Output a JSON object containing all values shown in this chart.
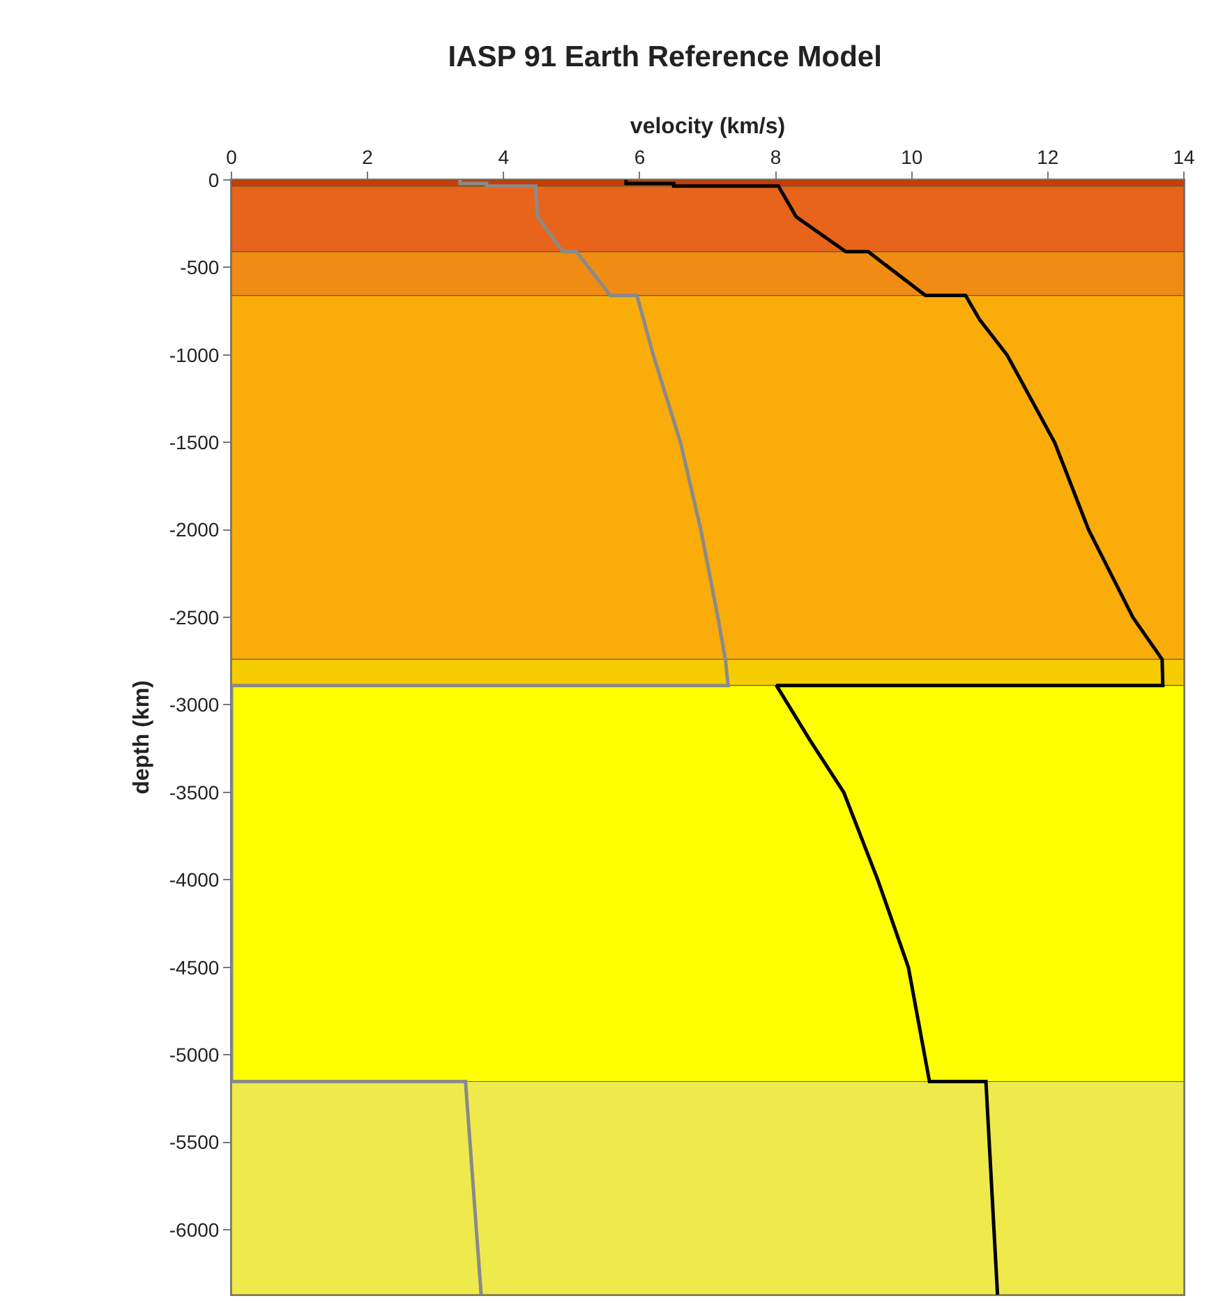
{
  "chart_data": {
    "type": "line",
    "title": "IASP 91 Earth Reference Model",
    "xlabel": "velocity (km/s)",
    "ylabel": "depth (km)",
    "xlim": [
      0,
      14
    ],
    "xticks": [
      0,
      2,
      4,
      6,
      8,
      10,
      12,
      14
    ],
    "ylim": [
      -6371,
      0
    ],
    "yticks": [
      0,
      -500,
      -1000,
      -1500,
      -2000,
      -2500,
      -3000,
      -3500,
      -4000,
      -4500,
      -5000,
      -5500,
      -6000
    ],
    "grid": false,
    "bands": [
      {
        "axis": "y",
        "from": 0,
        "to": -35,
        "color": "#c83c0a"
      },
      {
        "axis": "y",
        "from": -35,
        "to": -410,
        "color": "#e8641a"
      },
      {
        "axis": "y",
        "from": -410,
        "to": -660,
        "color": "#f08c14"
      },
      {
        "axis": "y",
        "from": -660,
        "to": -2740,
        "color": "#f9ac0a"
      },
      {
        "axis": "y",
        "from": -2740,
        "to": -2889,
        "color": "#f5cc00"
      },
      {
        "axis": "y",
        "from": -2889,
        "to": -5153,
        "color": "#ffff00"
      },
      {
        "axis": "y",
        "from": -5153,
        "to": -6371,
        "color": "#eeea4c"
      }
    ],
    "series": [
      {
        "color": "#000000",
        "x": [
          5.8,
          5.8,
          6.5,
          6.5,
          8.04,
          8.3,
          9.03,
          9.36,
          10.2,
          10.79,
          11.0,
          11.4,
          12.1,
          12.6,
          13.25,
          13.68,
          13.69,
          8.01,
          8.5,
          9.0,
          9.5,
          9.95,
          10.26,
          11.09,
          11.26
        ],
        "values": [
          0,
          -20,
          -20,
          -35,
          -35,
          -210,
          -410,
          -410,
          -660,
          -660,
          -800,
          -1000,
          -1500,
          -2000,
          -2500,
          -2740,
          -2889,
          -2889,
          -3200,
          -3500,
          -4000,
          -4500,
          -5153,
          -5153,
          -6371
        ]
      },
      {
        "color": "#8a8a8a",
        "x": [
          3.36,
          3.36,
          3.75,
          3.75,
          4.47,
          4.5,
          4.87,
          5.07,
          5.57,
          5.96,
          6.2,
          6.6,
          6.9,
          7.15,
          7.26,
          7.3,
          0,
          0,
          3.44,
          3.67
        ],
        "values": [
          0,
          -20,
          -20,
          -35,
          -35,
          -210,
          -410,
          -410,
          -660,
          -660,
          -1000,
          -1500,
          -2000,
          -2500,
          -2740,
          -2889,
          -2889,
          -5153,
          -5153,
          -6371
        ]
      }
    ]
  }
}
